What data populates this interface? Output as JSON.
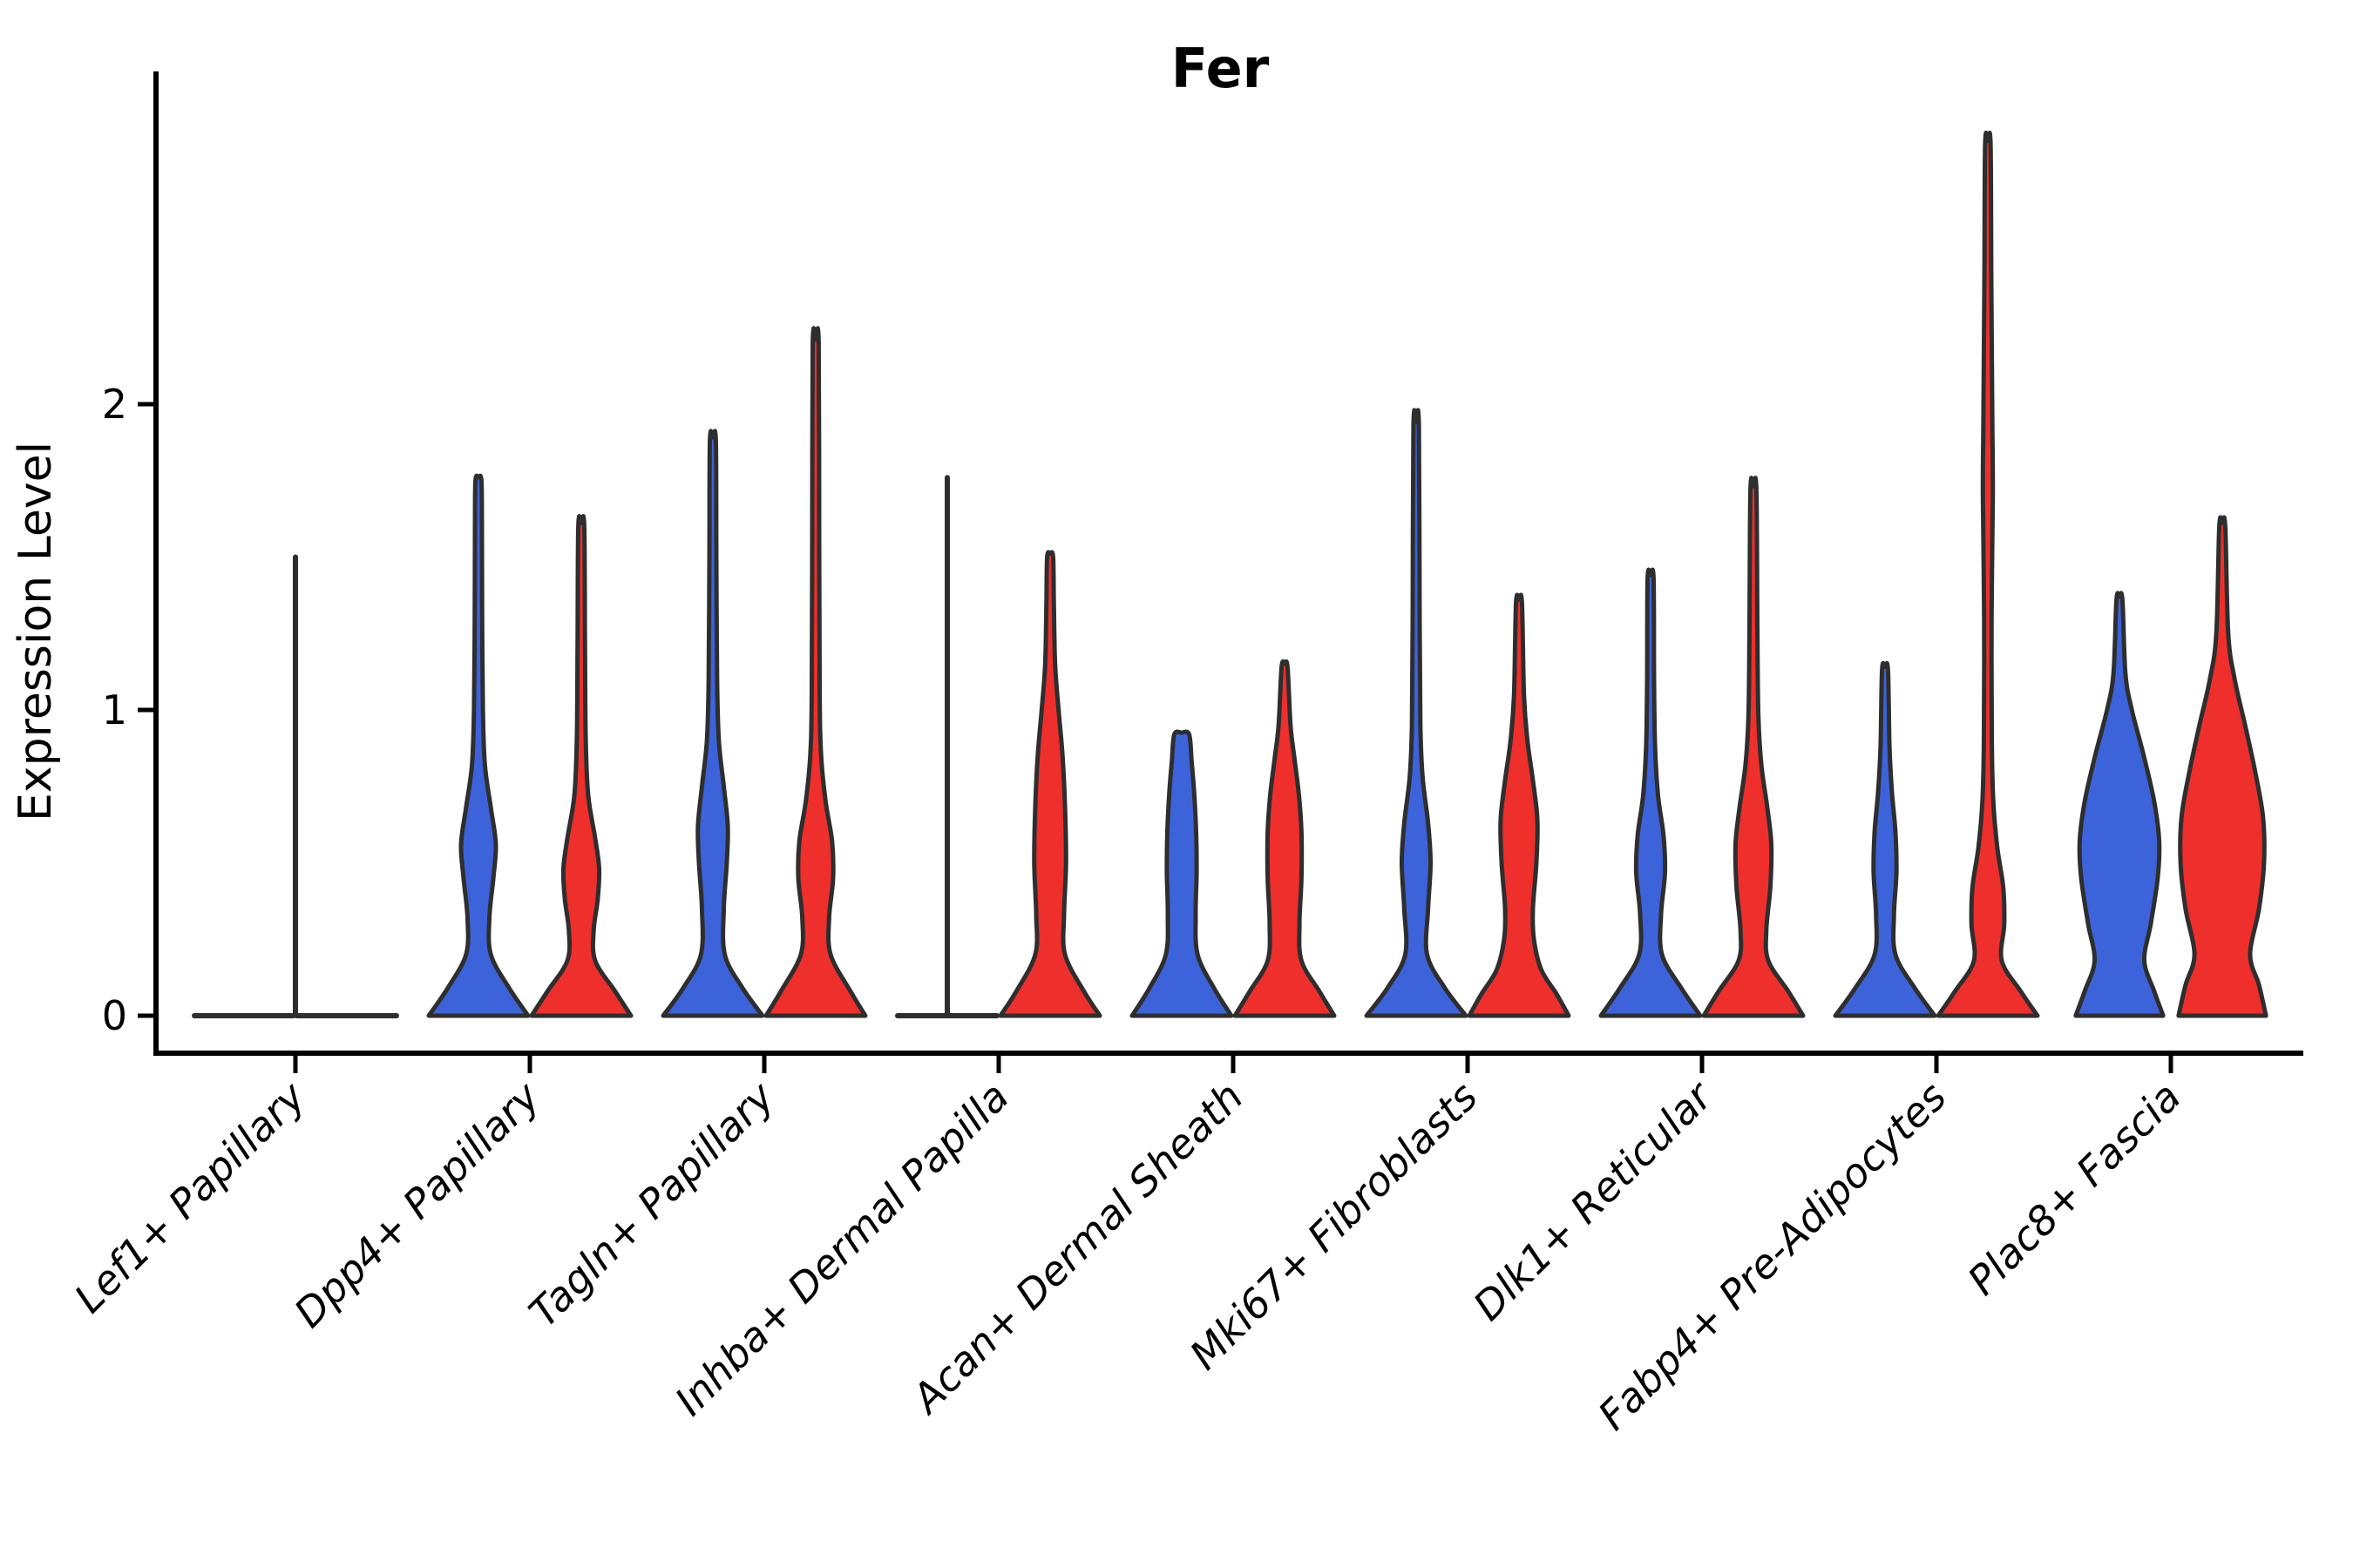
{
  "figure": {
    "title": "Fer",
    "background": "#ffffff"
  },
  "chart_data": {
    "type": "violin",
    "title": "Fer",
    "subtitle": "",
    "xlabel": "",
    "ylabel": "Expression Level",
    "ylim": [
      -0.12,
      3.08
    ],
    "yticks": [
      0,
      1,
      2
    ],
    "grid": "off",
    "legend_position": "none",
    "split_violin_colors": {
      "blue": "#3D63DB",
      "red": "#EE2F2C"
    },
    "outline_color": "#2E2E2E",
    "categories": [
      "Lef1+ Papillary",
      "Dpp4+ Papillary",
      "Tagln+ Papillary",
      "Inhba+ Dermal Papilla",
      "Acan+ Dermal Sheath",
      "Mki67+ Fibroblasts",
      "Dlk1+ Reticular",
      "Fabp4+ Pre-Adipocytes",
      "Plac8+ Fascia"
    ],
    "series": [
      {
        "name": "blue",
        "color": "#3D63DB"
      },
      {
        "name": "red",
        "color": "#EE2F2C"
      }
    ],
    "groups": [
      {
        "category": "Lef1+ Papillary",
        "blue": {
          "shape": "flat",
          "max": 0
        },
        "red": {
          "shape": "flat",
          "max": 0
        },
        "spike": {
          "at": "center",
          "top": 1.5
        }
      },
      {
        "category": "Dpp4+ Papillary",
        "blue": {
          "shape": "violin",
          "max": 1.75,
          "profile": [
            [
              0,
              1.0
            ],
            [
              0.09,
              0.62
            ],
            [
              0.2,
              0.25
            ],
            [
              0.32,
              0.22
            ],
            [
              0.45,
              0.3
            ],
            [
              0.56,
              0.35
            ],
            [
              0.68,
              0.25
            ],
            [
              0.82,
              0.13
            ],
            [
              1.0,
              0.09
            ],
            [
              1.3,
              0.075
            ],
            [
              1.6,
              0.07
            ],
            [
              1.75,
              0.06
            ]
          ]
        },
        "red": {
          "shape": "violin",
          "max": 1.6,
          "profile": [
            [
              0,
              1.0
            ],
            [
              0.08,
              0.68
            ],
            [
              0.18,
              0.28
            ],
            [
              0.28,
              0.25
            ],
            [
              0.38,
              0.33
            ],
            [
              0.48,
              0.36
            ],
            [
              0.58,
              0.28
            ],
            [
              0.72,
              0.14
            ],
            [
              0.9,
              0.09
            ],
            [
              1.2,
              0.075
            ],
            [
              1.6,
              0.06
            ]
          ]
        }
      },
      {
        "category": "Tagln+ Papillary",
        "blue": {
          "shape": "violin",
          "max": 1.88,
          "profile": [
            [
              0,
              1.0
            ],
            [
              0.09,
              0.6
            ],
            [
              0.2,
              0.24
            ],
            [
              0.35,
              0.22
            ],
            [
              0.5,
              0.28
            ],
            [
              0.62,
              0.3
            ],
            [
              0.75,
              0.22
            ],
            [
              0.9,
              0.12
            ],
            [
              1.1,
              0.085
            ],
            [
              1.5,
              0.07
            ],
            [
              1.88,
              0.06
            ]
          ]
        },
        "red": {
          "shape": "violin",
          "max": 2.2,
          "profile": [
            [
              0,
              1.0
            ],
            [
              0.08,
              0.7
            ],
            [
              0.2,
              0.3
            ],
            [
              0.32,
              0.27
            ],
            [
              0.45,
              0.35
            ],
            [
              0.57,
              0.33
            ],
            [
              0.7,
              0.2
            ],
            [
              0.85,
              0.11
            ],
            [
              1.05,
              0.08
            ],
            [
              1.6,
              0.07
            ],
            [
              2.2,
              0.06
            ]
          ]
        }
      },
      {
        "category": "Inhba+ Dermal Papilla",
        "blue": {
          "shape": "flat",
          "max": 0
        },
        "red": {
          "shape": "violin",
          "max": 1.5,
          "profile": [
            [
              0,
              1.0
            ],
            [
              0.08,
              0.68
            ],
            [
              0.2,
              0.3
            ],
            [
              0.33,
              0.28
            ],
            [
              0.5,
              0.32
            ],
            [
              0.68,
              0.3
            ],
            [
              0.85,
              0.25
            ],
            [
              1.0,
              0.17
            ],
            [
              1.15,
              0.1
            ],
            [
              1.35,
              0.075
            ],
            [
              1.5,
              0.06
            ]
          ]
        },
        "spike": {
          "at": "blue-center",
          "top": 1.76
        }
      },
      {
        "category": "Acan+ Dermal Sheath",
        "blue": {
          "shape": "violin",
          "max": 0.92,
          "blunt_top": true,
          "profile": [
            [
              0,
              1.0
            ],
            [
              0.09,
              0.65
            ],
            [
              0.2,
              0.32
            ],
            [
              0.33,
              0.28
            ],
            [
              0.47,
              0.3
            ],
            [
              0.6,
              0.29
            ],
            [
              0.73,
              0.25
            ],
            [
              0.83,
              0.2
            ],
            [
              0.92,
              0.15
            ]
          ]
        },
        "red": {
          "shape": "violin",
          "max": 1.14,
          "profile": [
            [
              0,
              1.0
            ],
            [
              0.08,
              0.7
            ],
            [
              0.18,
              0.34
            ],
            [
              0.3,
              0.3
            ],
            [
              0.45,
              0.34
            ],
            [
              0.6,
              0.34
            ],
            [
              0.72,
              0.29
            ],
            [
              0.84,
              0.2
            ],
            [
              0.95,
              0.12
            ],
            [
              1.14,
              0.06
            ]
          ]
        }
      },
      {
        "category": "Mki67+ Fibroblasts",
        "blue": {
          "shape": "violin",
          "max": 1.93,
          "profile": [
            [
              0,
              1.0
            ],
            [
              0.09,
              0.58
            ],
            [
              0.2,
              0.22
            ],
            [
              0.35,
              0.24
            ],
            [
              0.5,
              0.29
            ],
            [
              0.63,
              0.24
            ],
            [
              0.78,
              0.13
            ],
            [
              0.95,
              0.085
            ],
            [
              1.3,
              0.07
            ],
            [
              1.93,
              0.055
            ]
          ]
        },
        "red": {
          "shape": "violin",
          "max": 1.35,
          "profile": [
            [
              0,
              1.0
            ],
            [
              0.07,
              0.76
            ],
            [
              0.15,
              0.45
            ],
            [
              0.25,
              0.3
            ],
            [
              0.35,
              0.28
            ],
            [
              0.5,
              0.35
            ],
            [
              0.64,
              0.37
            ],
            [
              0.77,
              0.28
            ],
            [
              0.9,
              0.17
            ],
            [
              1.05,
              0.1
            ],
            [
              1.35,
              0.06
            ]
          ]
        }
      },
      {
        "category": "Dlk1+ Reticular",
        "blue": {
          "shape": "violin",
          "max": 1.43,
          "profile": [
            [
              0,
              1.0
            ],
            [
              0.09,
              0.62
            ],
            [
              0.2,
              0.23
            ],
            [
              0.33,
              0.21
            ],
            [
              0.47,
              0.29
            ],
            [
              0.59,
              0.26
            ],
            [
              0.72,
              0.15
            ],
            [
              0.88,
              0.09
            ],
            [
              1.1,
              0.07
            ],
            [
              1.43,
              0.06
            ]
          ]
        },
        "red": {
          "shape": "violin",
          "max": 1.72,
          "profile": [
            [
              0,
              1.0
            ],
            [
              0.08,
              0.7
            ],
            [
              0.18,
              0.3
            ],
            [
              0.28,
              0.26
            ],
            [
              0.42,
              0.34
            ],
            [
              0.56,
              0.36
            ],
            [
              0.68,
              0.28
            ],
            [
              0.82,
              0.16
            ],
            [
              0.98,
              0.1
            ],
            [
              1.25,
              0.08
            ],
            [
              1.72,
              0.06
            ]
          ]
        }
      },
      {
        "category": "Fabp4+ Pre-Adipocytes",
        "blue": {
          "shape": "violin",
          "max": 1.13,
          "profile": [
            [
              0,
              1.0
            ],
            [
              0.09,
              0.6
            ],
            [
              0.2,
              0.21
            ],
            [
              0.33,
              0.18
            ],
            [
              0.47,
              0.23
            ],
            [
              0.6,
              0.21
            ],
            [
              0.73,
              0.14
            ],
            [
              0.88,
              0.09
            ],
            [
              1.13,
              0.06
            ]
          ]
        },
        "red": {
          "shape": "violin",
          "max": 2.85,
          "profile": [
            [
              0,
              1.0
            ],
            [
              0.08,
              0.66
            ],
            [
              0.18,
              0.28
            ],
            [
              0.3,
              0.33
            ],
            [
              0.42,
              0.31
            ],
            [
              0.55,
              0.19
            ],
            [
              0.7,
              0.11
            ],
            [
              0.9,
              0.08
            ],
            [
              1.3,
              0.075
            ],
            [
              1.7,
              0.1
            ],
            [
              1.95,
              0.09
            ],
            [
              2.4,
              0.07
            ],
            [
              2.85,
              0.055
            ]
          ]
        }
      },
      {
        "category": "Plac8+ Fascia",
        "blue": {
          "shape": "violin",
          "max": 1.36,
          "profile": [
            [
              0,
              0.88
            ],
            [
              0.08,
              0.7
            ],
            [
              0.18,
              0.5
            ],
            [
              0.3,
              0.63
            ],
            [
              0.45,
              0.77
            ],
            [
              0.57,
              0.8
            ],
            [
              0.7,
              0.7
            ],
            [
              0.85,
              0.49
            ],
            [
              1.0,
              0.25
            ],
            [
              1.12,
              0.12
            ],
            [
              1.36,
              0.06
            ]
          ]
        },
        "red": {
          "shape": "violin",
          "max": 1.6,
          "profile": [
            [
              0,
              0.88
            ],
            [
              0.1,
              0.74
            ],
            [
              0.2,
              0.56
            ],
            [
              0.35,
              0.74
            ],
            [
              0.5,
              0.84
            ],
            [
              0.65,
              0.82
            ],
            [
              0.8,
              0.66
            ],
            [
              0.95,
              0.46
            ],
            [
              1.1,
              0.25
            ],
            [
              1.25,
              0.12
            ],
            [
              1.6,
              0.06
            ]
          ]
        }
      }
    ]
  }
}
